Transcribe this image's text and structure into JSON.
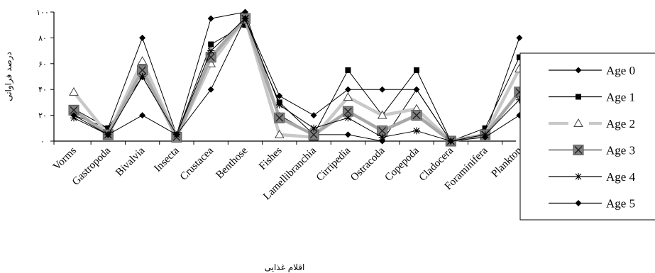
{
  "chart_data": {
    "type": "line",
    "xlabel": "اقلام غذایی",
    "ylabel": "درصد فراوانی",
    "ylim": [
      0,
      100
    ],
    "yticks": [
      0,
      20,
      40,
      60,
      80,
      100
    ],
    "ytick_labels": [
      "۰",
      "۲۰",
      "۴۰",
      "۶۰",
      "۸۰",
      "۱۰۰"
    ],
    "grid": false,
    "legend_position": "right",
    "categories": [
      "Vorms",
      "Gastropoda",
      "Bivalvia",
      "Insecta",
      "Crustacea",
      "Benthose",
      "Fishes",
      "Lamellibranchia",
      "Cirripedia",
      "Ostracoda",
      "Copepoda",
      "Cladocera",
      "Foraminifera",
      "Plankton"
    ],
    "series": [
      {
        "name": "Age 0",
        "marker": "diamond",
        "color": "#000000",
        "values": [
          20,
          10,
          80,
          5,
          95,
          100,
          20,
          5,
          5,
          0,
          40,
          0,
          5,
          80
        ]
      },
      {
        "name": "Age 1",
        "marker": "square",
        "color": "#000000",
        "values": [
          25,
          10,
          50,
          5,
          75,
          90,
          30,
          5,
          55,
          20,
          55,
          0,
          10,
          65
        ]
      },
      {
        "name": "Age 2",
        "marker": "triangle",
        "color": "#c8c8c8",
        "values": [
          38,
          5,
          62,
          3,
          60,
          95,
          5,
          3,
          34,
          20,
          25,
          0,
          5,
          56
        ]
      },
      {
        "name": "Age 3",
        "marker": "boxed-x",
        "color": "#808080",
        "values": [
          24,
          5,
          55,
          3,
          65,
          95,
          18,
          5,
          23,
          8,
          20,
          0,
          5,
          38
        ]
      },
      {
        "name": "Age 4",
        "marker": "star",
        "color": "#000000",
        "values": [
          18,
          5,
          50,
          5,
          70,
          95,
          28,
          10,
          18,
          3,
          8,
          0,
          5,
          32
        ]
      },
      {
        "name": "Age 5",
        "marker": "diamond",
        "color": "#000000",
        "values": [
          20,
          5,
          20,
          5,
          40,
          95,
          35,
          20,
          40,
          40,
          40,
          0,
          3,
          20
        ]
      }
    ]
  }
}
